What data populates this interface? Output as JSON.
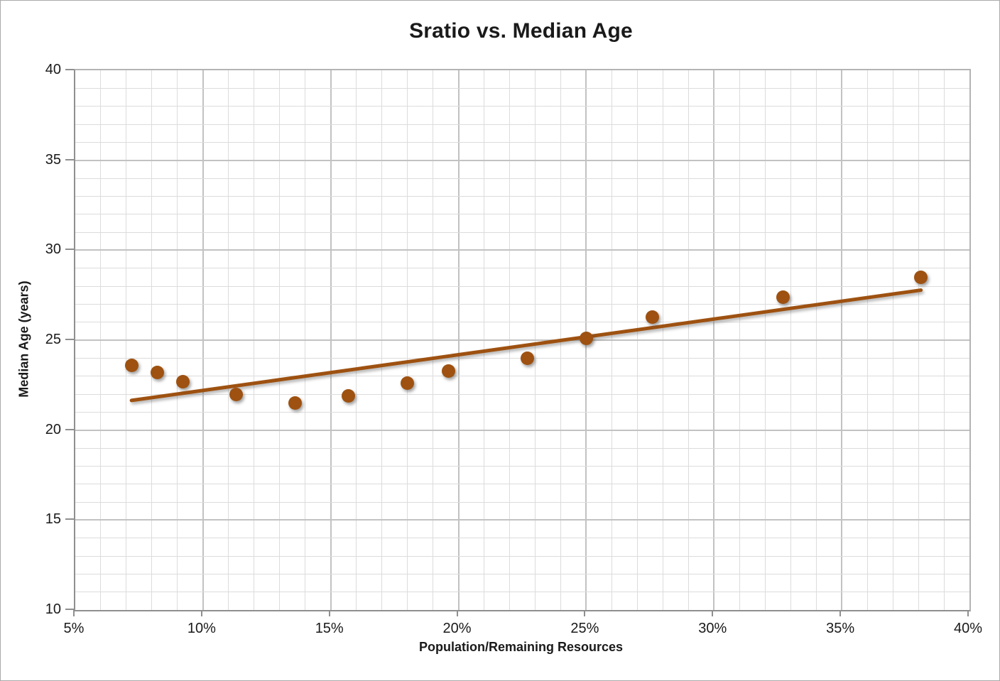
{
  "window": {
    "background_color": "#ffffff",
    "border_color": "#aaaaaa"
  },
  "chart_data": {
    "type": "scatter",
    "title": "Sratio vs. Median Age",
    "xlabel": "Population/Remaining Resources",
    "ylabel": "Median Age (years)",
    "xlim_percent": [
      5,
      40
    ],
    "ylim": [
      10,
      40
    ],
    "x_tick_step_percent": 5,
    "y_tick_step": 5,
    "x_tick_labels": [
      "5%",
      "10%",
      "15%",
      "20%",
      "25%",
      "30%",
      "35%",
      "40%"
    ],
    "y_tick_labels": [
      "10",
      "15",
      "20",
      "25",
      "30",
      "35",
      "40"
    ],
    "x_minor_gridline_step_percent": 1,
    "y_minor_gridline_step": 1,
    "grid": "major and minor, both axes",
    "legend": "none",
    "series": [
      {
        "name": "Median Age scatter points",
        "marker": "circle",
        "color": "#9e5110",
        "points": [
          {
            "x_percent": 7.2,
            "y_years": 23.6
          },
          {
            "x_percent": 8.2,
            "y_years": 23.2
          },
          {
            "x_percent": 9.2,
            "y_years": 22.7
          },
          {
            "x_percent": 11.3,
            "y_years": 22.0
          },
          {
            "x_percent": 13.6,
            "y_years": 21.5
          },
          {
            "x_percent": 15.7,
            "y_years": 21.9
          },
          {
            "x_percent": 18.0,
            "y_years": 22.6
          },
          {
            "x_percent": 19.6,
            "y_years": 23.3
          },
          {
            "x_percent": 22.7,
            "y_years": 24.0
          },
          {
            "x_percent": 25.0,
            "y_years": 25.1
          },
          {
            "x_percent": 27.6,
            "y_years": 26.3
          },
          {
            "x_percent": 32.7,
            "y_years": 27.4
          },
          {
            "x_percent": 38.1,
            "y_years": 28.5
          }
        ]
      }
    ],
    "trendline": {
      "type": "linear",
      "color": "#9e5110",
      "x1_percent": 7.2,
      "y1_years": 21.65,
      "x2_percent": 38.1,
      "y2_years": 27.78
    },
    "colors": {
      "point_and_trend": "#9e5110",
      "minor_gridline": "#dcdcdc",
      "major_gridline": "#c2c2c2",
      "axis_line": "#8f8f8f",
      "text": "#1a1a1a"
    }
  }
}
